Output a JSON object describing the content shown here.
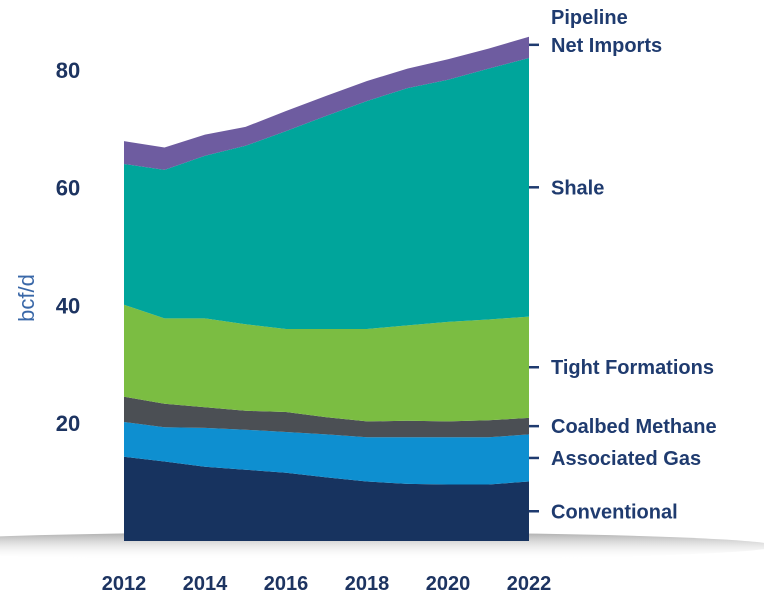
{
  "chart_data": {
    "type": "area",
    "stacked": true,
    "ylabel": "bcf/d",
    "ylim": [
      0,
      86
    ],
    "yticks": [
      "20",
      "40",
      "60",
      "80"
    ],
    "ytick_values": [
      20,
      40,
      60,
      80
    ],
    "x": [
      2012,
      2013,
      2014,
      2015,
      2016,
      2017,
      2018,
      2019,
      2020,
      2021,
      2022
    ],
    "xtick_labels": [
      "2012",
      "2014",
      "2016",
      "2018",
      "2020",
      "2022"
    ],
    "xtick_values": [
      2012,
      2014,
      2016,
      2018,
      2020,
      2022
    ],
    "grid": false,
    "legend_placement": "right, aligned with series",
    "series": [
      {
        "name": "Conventional",
        "color": "#17335f",
        "values": [
          14.3,
          13.5,
          12.6,
          12.1,
          11.6,
          10.8,
          10.1,
          9.7,
          9.6,
          9.6,
          10.1
        ]
      },
      {
        "name": "Associated Gas",
        "color": "#0e8fd0",
        "values": [
          5.9,
          5.8,
          6.6,
          6.8,
          6.9,
          7.3,
          7.5,
          7.9,
          8.0,
          8.0,
          8.0
        ]
      },
      {
        "name": "Coalbed Methane",
        "color": "#4b4f54",
        "values": [
          4.3,
          4.0,
          3.5,
          3.2,
          3.4,
          2.9,
          2.7,
          2.8,
          2.7,
          2.9,
          2.8
        ]
      },
      {
        "name": "Tight Formations",
        "color": "#7bbd42",
        "values": [
          15.6,
          14.5,
          15.1,
          14.7,
          14.1,
          15.0,
          15.7,
          16.2,
          16.9,
          17.1,
          17.2
        ]
      },
      {
        "name": "Shale",
        "color": "#00a59b",
        "values": [
          23.9,
          25.2,
          27.6,
          30.3,
          33.6,
          36.2,
          38.7,
          40.3,
          41.1,
          42.6,
          43.9
        ]
      },
      {
        "name": "Pipeline Net Imports",
        "color": "#6e5ca0",
        "values": [
          3.9,
          3.8,
          3.6,
          3.2,
          3.4,
          3.4,
          3.4,
          3.3,
          3.5,
          3.4,
          3.6
        ]
      }
    ],
    "legend_labels": [
      {
        "text": "Pipeline",
        "series": 5,
        "line": 1
      },
      {
        "text": "Net Imports",
        "series": 5,
        "line": 2
      },
      {
        "text": "Shale",
        "series": 4
      },
      {
        "text": "Tight Formations",
        "series": 3
      },
      {
        "text": "Coalbed Methane",
        "series": 2
      },
      {
        "text": "Associated Gas",
        "series": 1
      },
      {
        "text": "Conventional",
        "series": 0
      }
    ]
  }
}
